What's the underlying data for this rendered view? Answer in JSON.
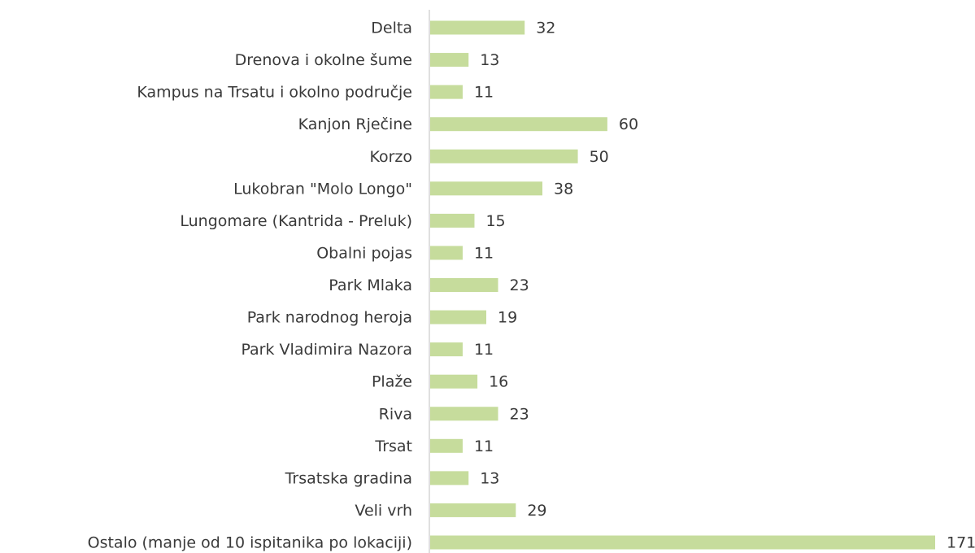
{
  "chart_data": {
    "type": "bar",
    "orientation": "horizontal",
    "categories": [
      "Delta",
      "Drenova i okolne šume",
      "Kampus na Trsatu i okolno područje",
      "Kanjon Rječine",
      "Korzo",
      "Lukobran \"Molo Longo\"",
      "Lungomare (Kantrida - Preluk)",
      "Obalni pojas",
      "Park Mlaka",
      "Park narodnog heroja",
      "Park Vladimira Nazora",
      "Plaže",
      "Riva",
      "Trsat",
      "Trsatska gradina",
      "Veli vrh",
      "Ostalo (manje od 10 ispitanika po lokaciji)"
    ],
    "values": [
      32,
      13,
      11,
      60,
      50,
      38,
      15,
      11,
      23,
      19,
      11,
      16,
      23,
      11,
      13,
      29,
      171
    ],
    "color": "#c6dc9c"
  }
}
